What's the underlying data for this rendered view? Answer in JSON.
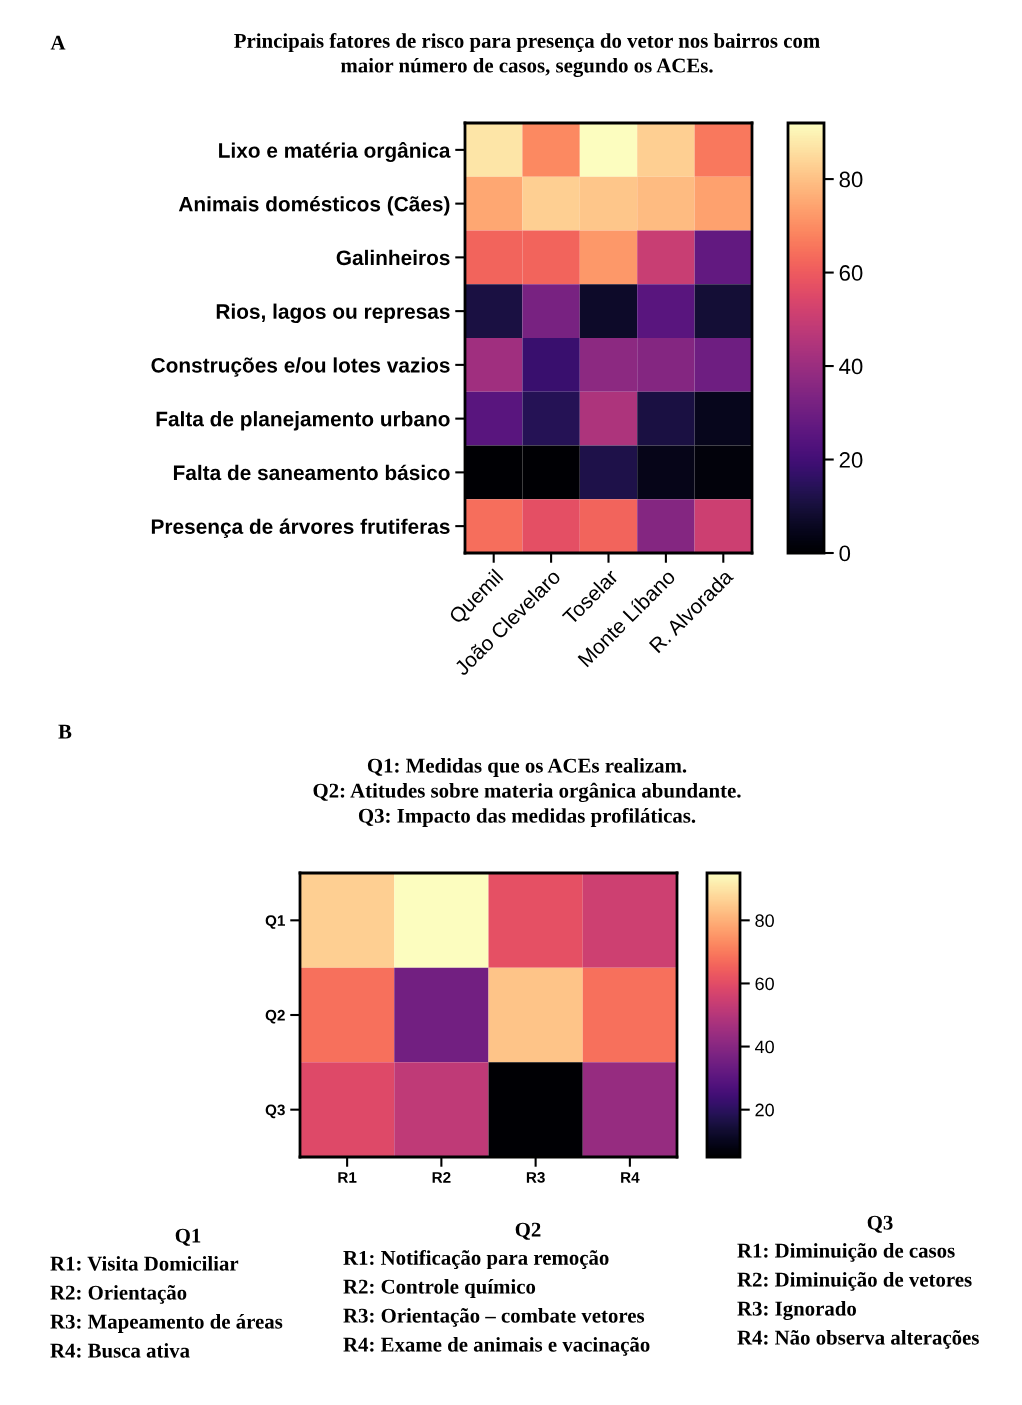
{
  "chart_data": [
    {
      "type": "heatmap",
      "title": "Principais fatores de risco para presença do vetor nos bairros com\nmaior número de casos, segundo os ACEs.",
      "annotations": [
        "A"
      ],
      "categories": [
        "Quemil",
        "João Clevelaro",
        "Toselar",
        "Monte Líbano",
        "R. Alvorada"
      ],
      "y_categories": [
        "Lixo e matéria orgânica",
        "Animais domésticos (Cães)",
        "Galinheiros",
        "Rios, lagos ou represas",
        "Construções e/ou lotes vazios",
        "Falta de planejamento urbano",
        "Falta de saneamento básico",
        "Presença de árvores frutiferas"
      ],
      "cells": [
        [
          87,
          69,
          92,
          83,
          66
        ],
        [
          75,
          83,
          81,
          79,
          74
        ],
        [
          62,
          62,
          72,
          50,
          27
        ],
        [
          11,
          32,
          7,
          25,
          9
        ],
        [
          41,
          18,
          37,
          35,
          30
        ],
        [
          25,
          14,
          44,
          11,
          5
        ],
        [
          0,
          0,
          12,
          4,
          2
        ],
        [
          64,
          57,
          62,
          35,
          51
        ]
      ],
      "clim": [
        0,
        92
      ],
      "cticks": [
        0,
        20,
        40,
        60,
        80
      ]
    },
    {
      "type": "heatmap",
      "title": "Q1: Medidas que os ACEs realizam.\nQ2: Atitudes sobre materia orgânica abundante.\nQ3: Impacto das medidas profiláticas.",
      "annotations": [
        "B",
        "Q1",
        "R1: Visita Domiciliar",
        "R2: Orientação",
        "R3: Mapeamento de áreas",
        "R4: Busca ativa",
        "Q2",
        "R1: Notificação para remoção",
        "R2: Controle químico",
        "R3: Orientação – combate vetores",
        "R4: Exame de animais e vacinação",
        "Q3",
        "R1: Diminuição de casos",
        "R2: Diminuição de vetores",
        "R3: Ignorado",
        "R4: Não observa alterações"
      ],
      "categories": [
        "R1",
        "R2",
        "R3",
        "R4"
      ],
      "y_categories": [
        "Q1",
        "Q2",
        "Q3"
      ],
      "cells": [
        [
          86,
          95,
          61,
          55
        ],
        [
          68,
          35,
          84,
          68
        ],
        [
          59,
          52,
          5,
          43
        ]
      ],
      "clim": [
        5,
        95
      ],
      "cticks": [
        20,
        40,
        60,
        80
      ]
    }
  ]
}
